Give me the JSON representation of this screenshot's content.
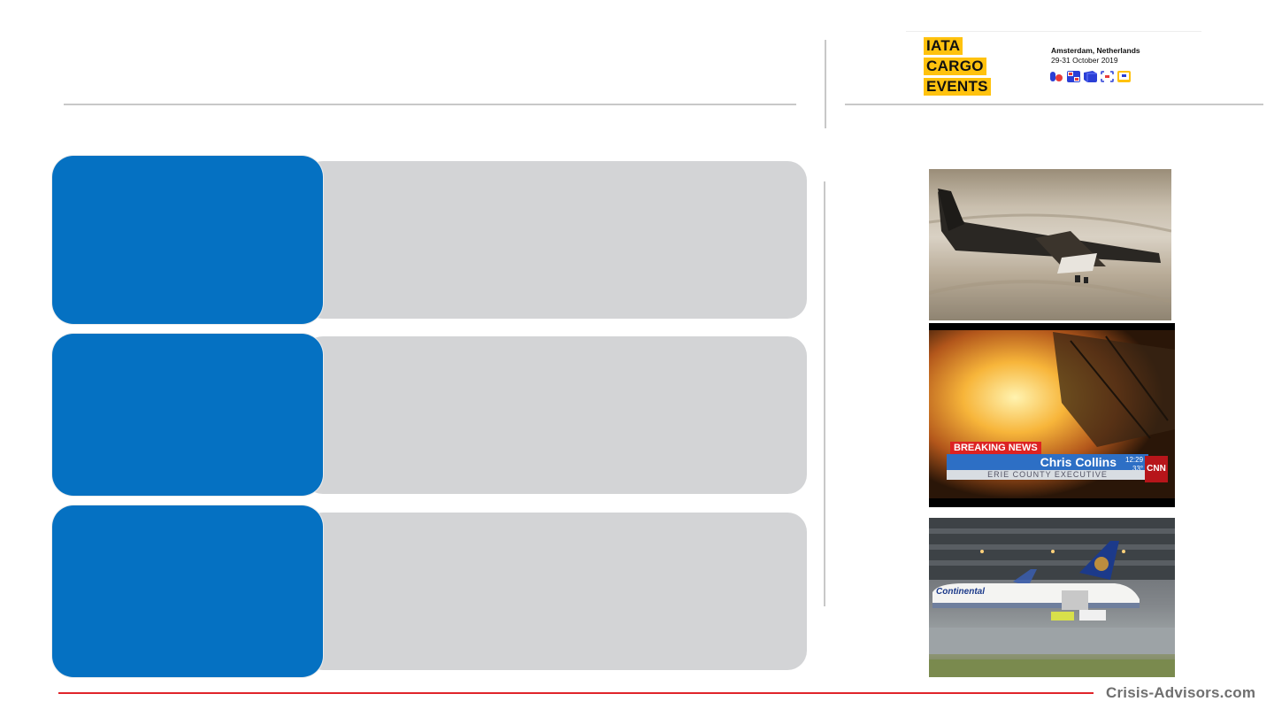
{
  "logo": {
    "words": [
      "IATA",
      "CARGO",
      "EVENTS"
    ],
    "location": "Amsterdam, Netherlands",
    "dates": "29-31 October 2019",
    "icons": [
      "transport-icon",
      "flag-icon",
      "cube-icon",
      "scan-icon",
      "screen-icon"
    ]
  },
  "photos": [
    {
      "name": "crashed-plane-photo"
    },
    {
      "name": "breaking-news-photo",
      "banner": "BREAKING NEWS",
      "person": "Chris Collins",
      "role": "ERIE COUNTY EXECUTIVE",
      "time": "12:29",
      "temp": "33°",
      "channel": "CNN"
    },
    {
      "name": "continental-plane-photo",
      "livery": "Continental"
    }
  ],
  "footer": {
    "site": "Crisis-Advisors.com"
  },
  "colors": {
    "accent_blue": "#0571c2",
    "panel_gray": "#d3d4d6",
    "logo_yellow": "#ffc20e",
    "footer_red": "#e0242a"
  }
}
